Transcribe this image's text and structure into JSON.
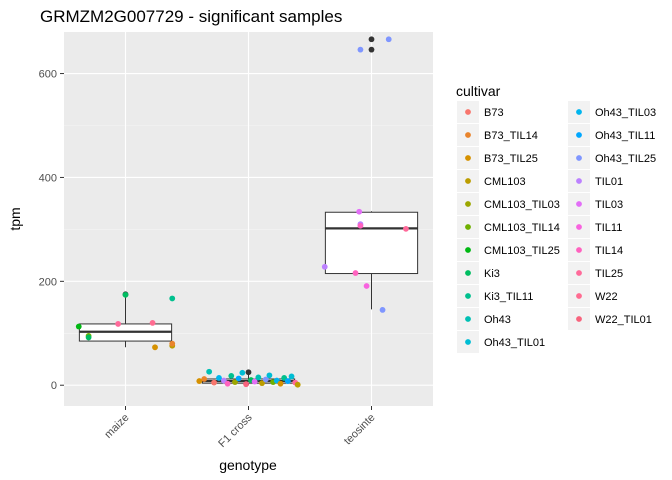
{
  "chart_data": {
    "type": "boxplot+jitter",
    "title": "GRMZM2G007729 - significant samples",
    "xlabel": "genotype",
    "ylabel": "tpm",
    "categories": [
      "maize",
      "F1 cross",
      "teosinte"
    ],
    "ylim": [
      -40,
      680
    ],
    "yticks": [
      0,
      200,
      400,
      600
    ],
    "grid": true,
    "legend": {
      "title": "cultivar",
      "placement": "right",
      "entries": [
        {
          "name": "B73",
          "color": "#F8766D"
        },
        {
          "name": "B73_TIL14",
          "color": "#E9842C"
        },
        {
          "name": "B73_TIL25",
          "color": "#D69100"
        },
        {
          "name": "CML103",
          "color": "#BC9D00"
        },
        {
          "name": "CML103_TIL03",
          "color": "#9CA700"
        },
        {
          "name": "CML103_TIL14",
          "color": "#6FB000"
        },
        {
          "name": "CML103_TIL25",
          "color": "#00B813"
        },
        {
          "name": "Ki3",
          "color": "#00BD61"
        },
        {
          "name": "Ki3_TIL11",
          "color": "#00C08E"
        },
        {
          "name": "Oh43",
          "color": "#00C0B4"
        },
        {
          "name": "Oh43_TIL01",
          "color": "#00BDD4"
        },
        {
          "name": "Oh43_TIL03",
          "color": "#00B5EE"
        },
        {
          "name": "Oh43_TIL11",
          "color": "#00A7FF"
        },
        {
          "name": "Oh43_TIL25",
          "color": "#7F96FF"
        },
        {
          "name": "TIL01",
          "color": "#BC81FF"
        },
        {
          "name": "TIL03",
          "color": "#E26EF7"
        },
        {
          "name": "TIL11",
          "color": "#F863DF"
        },
        {
          "name": "TIL14",
          "color": "#FF62BF"
        },
        {
          "name": "TIL25",
          "color": "#FF6A9A"
        },
        {
          "name": "W22",
          "color": "#FF6C91"
        },
        {
          "name": "W22_TIL01",
          "color": "#F8637D"
        }
      ]
    },
    "boxes": [
      {
        "category": "maize",
        "min": 73,
        "q1": 85,
        "median": 103,
        "q3": 118,
        "max": 175
      },
      {
        "category": "F1 cross",
        "min": 0,
        "q1": 4,
        "median": 8,
        "q3": 12,
        "max": 25
      },
      {
        "category": "teosinte",
        "min": 146,
        "q1": 215,
        "median": 302,
        "q3": 333,
        "max": 335
      }
    ],
    "outliers": [
      {
        "category": "maize",
        "y": 175,
        "color": "#333333"
      },
      {
        "category": "F1 cross",
        "y": 25,
        "color": "#333333"
      },
      {
        "category": "teosinte",
        "y": 666,
        "color": "#333333"
      },
      {
        "category": "teosinte",
        "y": 646,
        "color": "#333333"
      }
    ],
    "points": [
      {
        "category": "maize",
        "dx": -0.38,
        "y": 113,
        "color": "#00B813"
      },
      {
        "category": "maize",
        "dx": -0.3,
        "y": 95,
        "color": "#6FB000"
      },
      {
        "category": "maize",
        "dx": -0.3,
        "y": 92,
        "color": "#00BD61"
      },
      {
        "category": "maize",
        "dx": -0.06,
        "y": 118,
        "color": "#FF6A9A"
      },
      {
        "category": "maize",
        "dx": 0.0,
        "y": 174,
        "color": "#00BD61"
      },
      {
        "category": "maize",
        "dx": 0.22,
        "y": 120,
        "color": "#FF6C91"
      },
      {
        "category": "maize",
        "dx": 0.24,
        "y": 73,
        "color": "#D69100"
      },
      {
        "category": "maize",
        "dx": 0.38,
        "y": 76,
        "color": "#BC9D00"
      },
      {
        "category": "maize",
        "dx": 0.38,
        "y": 80,
        "color": "#E9842C"
      },
      {
        "category": "maize",
        "dx": 0.38,
        "y": 167,
        "color": "#00C08E"
      },
      {
        "category": "F1 cross",
        "dx": -0.4,
        "y": 8,
        "color": "#D69100"
      },
      {
        "category": "F1 cross",
        "dx": -0.36,
        "y": 12,
        "color": "#E9842C"
      },
      {
        "category": "F1 cross",
        "dx": -0.32,
        "y": 26,
        "color": "#00C0B4"
      },
      {
        "category": "F1 cross",
        "dx": -0.28,
        "y": 5,
        "color": "#F8766D"
      },
      {
        "category": "F1 cross",
        "dx": -0.24,
        "y": 14,
        "color": "#00B5EE"
      },
      {
        "category": "F1 cross",
        "dx": -0.2,
        "y": 9,
        "color": "#BC81FF"
      },
      {
        "category": "F1 cross",
        "dx": -0.17,
        "y": 3,
        "color": "#FF62BF"
      },
      {
        "category": "F1 cross",
        "dx": -0.14,
        "y": 18,
        "color": "#00C08E"
      },
      {
        "category": "F1 cross",
        "dx": -0.11,
        "y": 6,
        "color": "#9CA700"
      },
      {
        "category": "F1 cross",
        "dx": -0.08,
        "y": 13,
        "color": "#00A7FF"
      },
      {
        "category": "F1 cross",
        "dx": -0.05,
        "y": 24,
        "color": "#00BDD4"
      },
      {
        "category": "F1 cross",
        "dx": -0.02,
        "y": 2,
        "color": "#F8637D"
      },
      {
        "category": "F1 cross",
        "dx": 0.02,
        "y": 10,
        "color": "#00BD61"
      },
      {
        "category": "F1 cross",
        "dx": 0.05,
        "y": 7,
        "color": "#E26EF7"
      },
      {
        "category": "F1 cross",
        "dx": 0.08,
        "y": 15,
        "color": "#00C0B4"
      },
      {
        "category": "F1 cross",
        "dx": 0.11,
        "y": 4,
        "color": "#BC9D00"
      },
      {
        "category": "F1 cross",
        "dx": 0.14,
        "y": 11,
        "color": "#7F96FF"
      },
      {
        "category": "F1 cross",
        "dx": 0.17,
        "y": 19,
        "color": "#00BDD4"
      },
      {
        "category": "F1 cross",
        "dx": 0.2,
        "y": 6,
        "color": "#6FB000"
      },
      {
        "category": "F1 cross",
        "dx": 0.23,
        "y": 9,
        "color": "#00B5EE"
      },
      {
        "category": "F1 cross",
        "dx": 0.26,
        "y": 3,
        "color": "#D69100"
      },
      {
        "category": "F1 cross",
        "dx": 0.29,
        "y": 14,
        "color": "#00C08E"
      },
      {
        "category": "F1 cross",
        "dx": 0.32,
        "y": 8,
        "color": "#00A7FF"
      },
      {
        "category": "F1 cross",
        "dx": 0.35,
        "y": 17,
        "color": "#00BDD4"
      },
      {
        "category": "F1 cross",
        "dx": 0.38,
        "y": 5,
        "color": "#FF6A9A"
      },
      {
        "category": "F1 cross",
        "dx": 0.4,
        "y": 1,
        "color": "#BC9D00"
      },
      {
        "category": "teosinte",
        "dx": -0.38,
        "y": 228,
        "color": "#BC81FF"
      },
      {
        "category": "teosinte",
        "dx": -0.13,
        "y": 216,
        "color": "#FF62BF"
      },
      {
        "category": "teosinte",
        "dx": -0.1,
        "y": 334,
        "color": "#E26EF7"
      },
      {
        "category": "teosinte",
        "dx": -0.09,
        "y": 310,
        "color": "#BC81FF"
      },
      {
        "category": "teosinte",
        "dx": -0.09,
        "y": 307,
        "color": "#FF62BF"
      },
      {
        "category": "teosinte",
        "dx": -0.04,
        "y": 191,
        "color": "#F863DF"
      },
      {
        "category": "teosinte",
        "dx": 0.09,
        "y": 145,
        "color": "#7F96FF"
      },
      {
        "category": "teosinte",
        "dx": 0.14,
        "y": 666,
        "color": "#7F96FF"
      },
      {
        "category": "teosinte",
        "dx": -0.09,
        "y": 646,
        "color": "#7F96FF"
      },
      {
        "category": "teosinte",
        "dx": 0.28,
        "y": 301,
        "color": "#FF6A9A"
      }
    ]
  }
}
